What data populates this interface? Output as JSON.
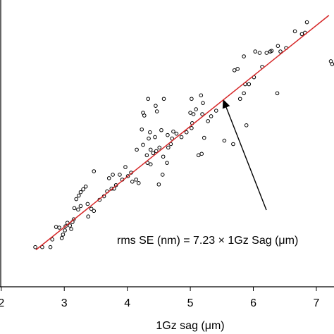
{
  "chart_data": {
    "type": "scatter",
    "xlabel": "1Gz sag (μm)",
    "annotation": "rms SE (nm) = 7.23 × 1Gz Sag (μm)",
    "xlim": [
      1.98,
      7.28
    ],
    "ylim": [
      13.1,
      54.3
    ],
    "xticks": [
      2,
      3,
      4,
      5,
      6,
      7
    ],
    "series": [
      {
        "color": "#000000",
        "x": [
          2.54,
          2.65,
          2.78,
          2.81,
          2.87,
          2.92,
          2.96,
          2.98,
          3.01,
          3.02,
          3.05,
          3.09,
          3.13,
          3.15,
          3.11,
          3.19,
          3.23,
          3.26,
          3.3,
          3.34,
          3.22,
          3.16,
          3.26,
          3.37,
          3.43,
          3.47,
          3.38,
          3.47,
          3.56,
          3.63,
          3.68,
          3.75,
          3.79,
          3.82,
          3.71,
          3.77,
          3.88,
          3.92,
          3.97,
          4.01,
          4.06,
          4.08,
          4.14,
          4.18,
          4.15,
          4.25,
          4.31,
          4.32,
          4.37,
          4.41,
          4.46,
          4.51,
          4.34,
          4.36,
          4.23,
          4.25,
          4.27,
          4.33,
          4.45,
          4.47,
          4.58,
          4.37,
          4.44,
          4.54,
          4.64,
          4.73,
          4.69,
          4.65,
          4.57,
          4.5,
          4.56,
          4.63,
          4.71,
          4.78,
          4.86,
          4.94,
          5.02,
          5.0,
          5.05,
          5.02,
          5.03,
          5.09,
          5.17,
          5.2,
          5.19,
          5.13,
          5.18,
          5.22,
          5.28,
          5.33,
          5.41,
          5.54,
          5.68,
          5.7,
          5.75,
          5.79,
          5.85,
          5.87,
          5.89,
          5.93,
          5.85,
          6.01,
          6.03,
          6.1,
          6.14,
          6.21,
          6.27,
          6.29,
          6.38,
          6.39,
          6.43,
          6.52,
          6.66,
          6.77,
          6.82,
          6.85,
          7.23,
          7.25
        ],
        "values": [
          18.8,
          18.8,
          18.8,
          19.9,
          21.7,
          21.6,
          20.1,
          20.6,
          21.2,
          21.8,
          22.3,
          21.9,
          22.4,
          22.8,
          21.4,
          25.7,
          26.2,
          26.7,
          27.1,
          27.5,
          24.2,
          24.4,
          24.7,
          25.0,
          24.3,
          24.0,
          23.2,
          29.7,
          25.6,
          26.1,
          26.8,
          27.2,
          27.2,
          27.7,
          28.7,
          29.2,
          29.2,
          28.5,
          30.3,
          29.0,
          29.5,
          28.2,
          28.5,
          28.0,
          32.8,
          33.5,
          32.0,
          30.9,
          30.7,
          32.3,
          32.6,
          33.1,
          34.4,
          35.3,
          35.7,
          38.1,
          37.7,
          40.1,
          39.1,
          38.3,
          40.1,
          32.8,
          34.6,
          35.6,
          34.9,
          35.4,
          33.6,
          33.1,
          31.8,
          27.8,
          29.2,
          30.9,
          34.4,
          35.1,
          34.6,
          35.3,
          35.9,
          38.1,
          37.9,
          40.1,
          36.6,
          38.6,
          40.6,
          39.5,
          37.9,
          32.0,
          32.2,
          34.5,
          36.9,
          37.6,
          38.4,
          34.1,
          33.6,
          44.2,
          44.4,
          40.1,
          40.9,
          42.2,
          36.3,
          42.2,
          46.2,
          43.2,
          46.9,
          46.7,
          44.7,
          46.7,
          46.9,
          47.0,
          40.9,
          47.7,
          46.9,
          47.4,
          49.8,
          49.4,
          49.6,
          51.1,
          45.5,
          45.1
        ]
      },
      {
        "color": "#d62728",
        "x": [
          2.55,
          7.2
        ],
        "values": [
          18.4,
          52.1
        ]
      }
    ]
  }
}
